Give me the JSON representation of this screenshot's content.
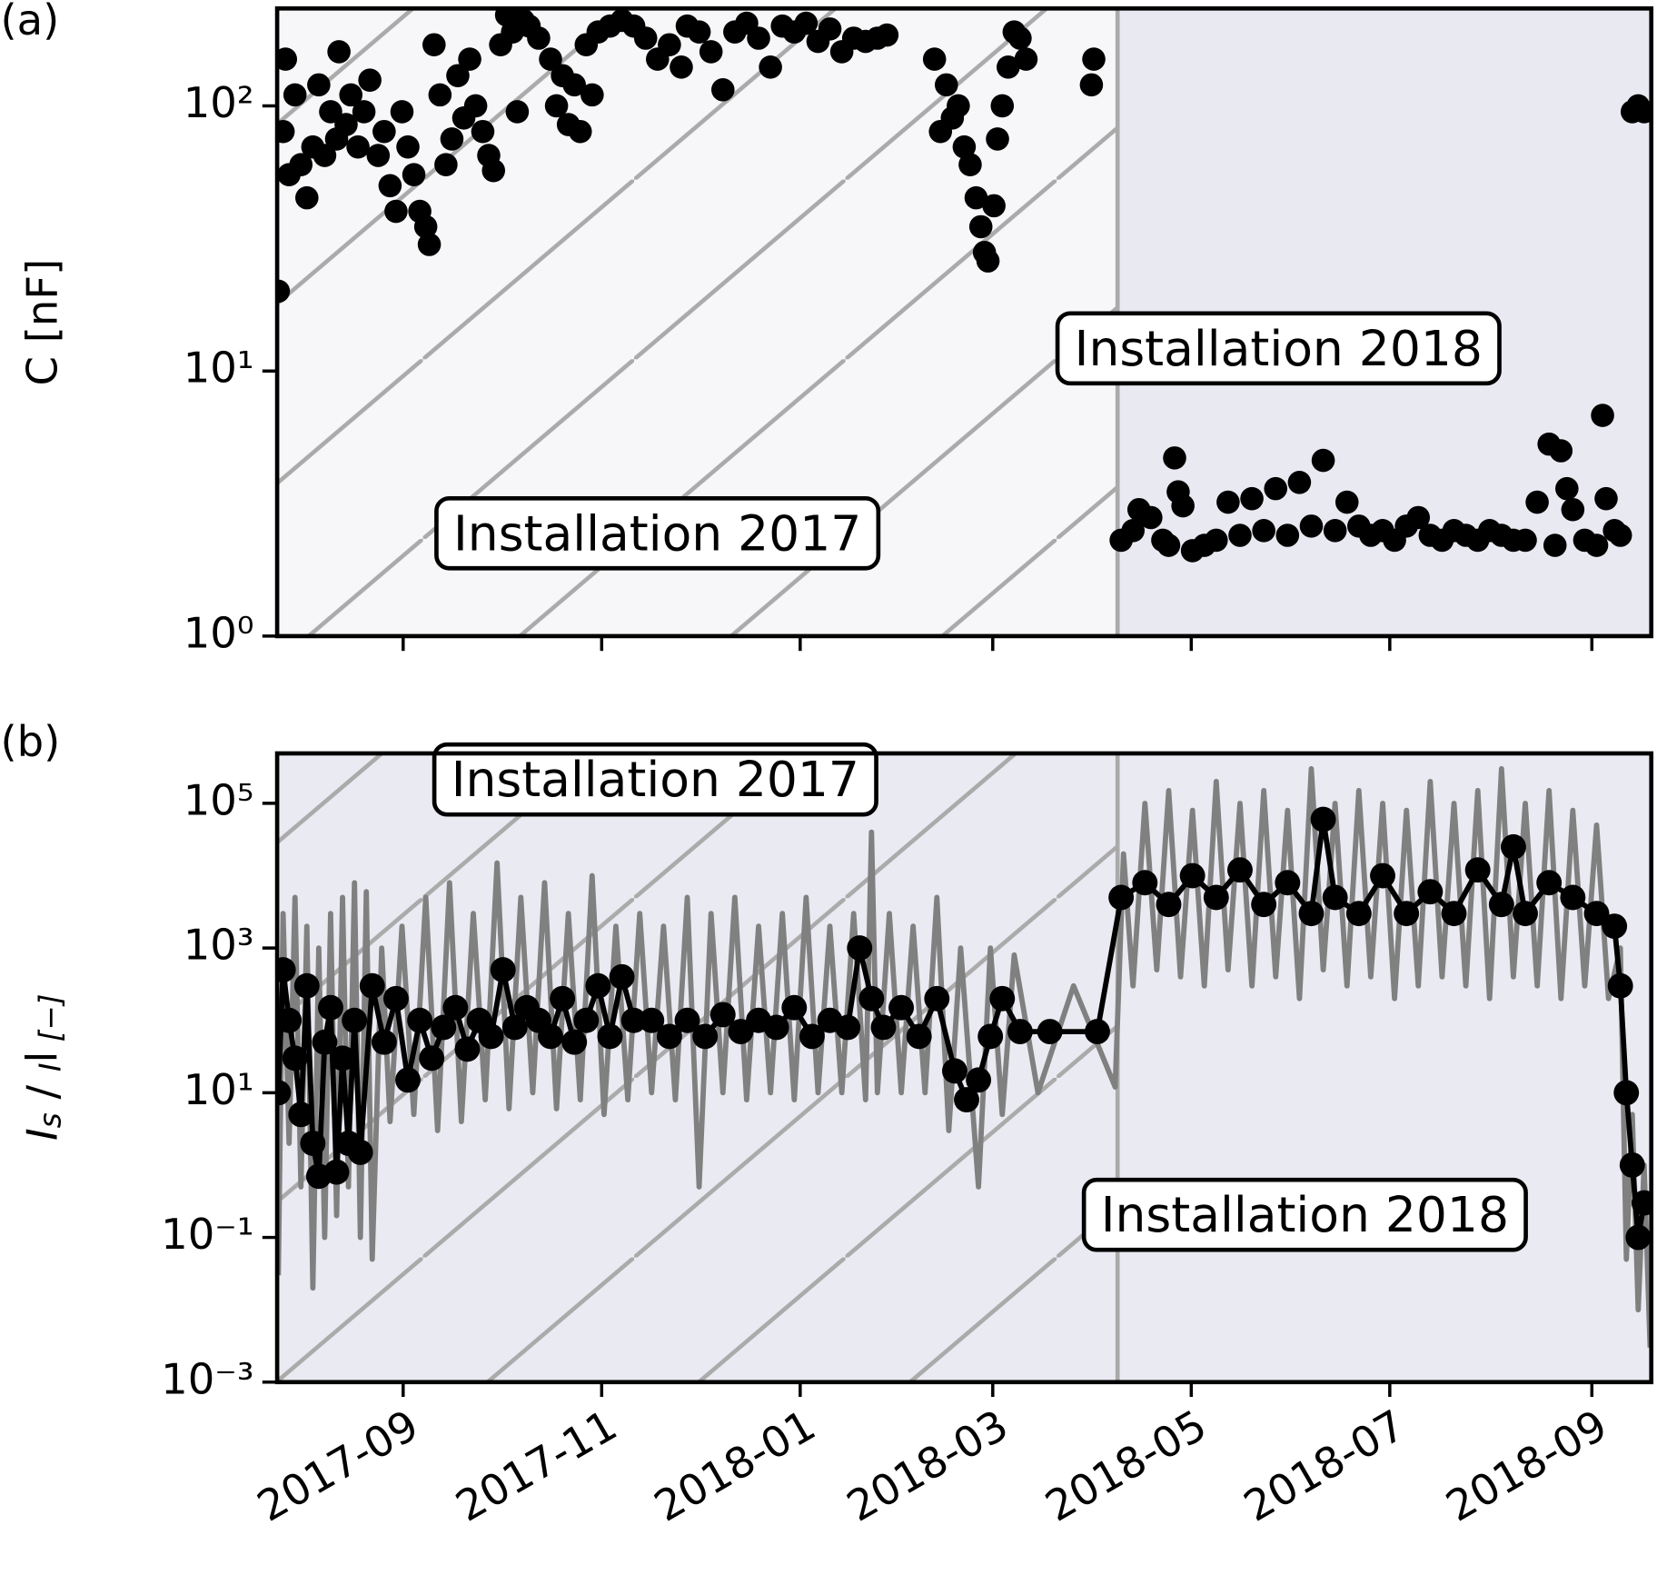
{
  "chart_data": [
    {
      "type": "scatter",
      "panel_label": "(a)",
      "ylabel": [
        "C [nF]"
      ],
      "log_y": true,
      "ylim": [
        1,
        233
      ],
      "yticks": [
        {
          "value": 1,
          "label": "10⁰"
        },
        {
          "value": 10,
          "label": "10¹"
        },
        {
          "value": 100,
          "label": "10²"
        }
      ],
      "xlim": [
        2017.56,
        2018.716
      ],
      "xticks": [
        2017.666,
        2017.833,
        2018.0,
        2018.162,
        2018.329,
        2018.496,
        2018.666
      ],
      "shade_split": 2018.267,
      "background_colors": [
        "#f7f7fa",
        "#e9e9f2"
      ],
      "hatch_color": "#aaaaaa",
      "annotations": [
        "Installation 2017",
        "Installation 2018"
      ],
      "color": "#000000",
      "x": [
        2017.561,
        2017.565,
        2017.567,
        2017.57,
        2017.575,
        2017.58,
        2017.585,
        2017.59,
        2017.595,
        2017.6,
        2017.605,
        2017.61,
        2017.612,
        2017.618,
        2017.622,
        2017.628,
        2017.633,
        2017.638,
        2017.645,
        2017.65,
        2017.655,
        2017.66,
        2017.665,
        2017.67,
        2017.675,
        2017.68,
        2017.685,
        2017.688,
        2017.692,
        2017.697,
        2017.702,
        2017.707,
        2017.712,
        2017.717,
        2017.722,
        2017.727,
        2017.733,
        2017.738,
        2017.742,
        2017.748,
        2017.753,
        2017.758,
        2017.762,
        2017.767,
        2017.772,
        2017.78,
        2017.79,
        2017.795,
        2017.8,
        2017.805,
        2017.81,
        2017.815,
        2017.82,
        2017.825,
        2017.83,
        2017.84,
        2017.85,
        2017.86,
        2017.87,
        2017.88,
        2017.89,
        2017.9,
        2017.905,
        2017.915,
        2017.925,
        2017.935,
        2017.945,
        2017.955,
        2017.965,
        2017.975,
        2017.985,
        2017.995,
        2018.005,
        2018.015,
        2018.025,
        2018.035,
        2018.045,
        2018.055,
        2018.065,
        2018.073,
        2018.113,
        2018.118,
        2018.123,
        2018.128,
        2018.133,
        2018.138,
        2018.143,
        2018.148,
        2018.152,
        2018.155,
        2018.158,
        2018.163,
        2018.166,
        2018.17,
        2018.175,
        2018.18,
        2018.185,
        2018.19,
        2018.245,
        2018.247,
        2018.27,
        2018.28,
        2018.285,
        2018.295,
        2018.305,
        2018.31,
        2018.315,
        2018.318,
        2018.322,
        2018.33,
        2018.34,
        2018.35,
        2018.36,
        2018.37,
        2018.38,
        2018.39,
        2018.4,
        2018.41,
        2018.42,
        2018.43,
        2018.44,
        2018.45,
        2018.46,
        2018.47,
        2018.48,
        2018.49,
        2018.5,
        2018.51,
        2018.52,
        2018.53,
        2018.54,
        2018.55,
        2018.56,
        2018.57,
        2018.58,
        2018.59,
        2018.6,
        2018.61,
        2018.62,
        2018.63,
        2018.635,
        2018.64,
        2018.645,
        2018.65,
        2018.66,
        2018.67,
        2018.675,
        2018.678,
        2018.685,
        2018.69,
        2018.7,
        2018.705,
        2018.71
      ],
      "values": [
        20,
        80,
        150,
        55,
        110,
        60,
        45,
        70,
        120,
        65,
        95,
        75,
        160,
        85,
        110,
        70,
        95,
        125,
        65,
        80,
        50,
        40,
        95,
        70,
        55,
        40,
        35,
        30,
        170,
        110,
        60,
        75,
        130,
        90,
        150,
        100,
        80,
        65,
        57,
        170,
        220,
        190,
        95,
        210,
        200,
        180,
        150,
        100,
        130,
        85,
        120,
        80,
        170,
        110,
        190,
        200,
        210,
        200,
        180,
        150,
        170,
        140,
        200,
        190,
        160,
        115,
        190,
        205,
        180,
        140,
        200,
        190,
        205,
        175,
        195,
        160,
        180,
        175,
        180,
        185,
        150,
        80,
        120,
        90,
        100,
        70,
        60,
        45,
        35,
        28,
        26,
        42,
        75,
        100,
        140,
        190,
        180,
        150,
        120,
        150,
        2.3,
        2.5,
        3.0,
        2.8,
        2.3,
        2.2,
        4.7,
        3.5,
        3.1,
        2.1,
        2.2,
        2.3,
        3.2,
        2.4,
        3.3,
        2.5,
        3.6,
        2.4,
        3.8,
        2.6,
        4.6,
        2.5,
        3.2,
        2.6,
        2.4,
        2.5,
        2.3,
        2.6,
        2.8,
        2.4,
        2.3,
        2.5,
        2.4,
        2.3,
        2.5,
        2.4,
        2.3,
        2.3,
        3.2,
        5.3,
        2.2,
        5.0,
        3.6,
        3.0,
        2.3,
        2.2,
        6.8,
        3.3,
        2.5,
        2.4,
        95,
        100,
        95
      ]
    },
    {
      "type": "line",
      "panel_label": "(b)",
      "ylabel": [
        "I",
        "s",
        " / ",
        "I",
        "l",
        " [−]"
      ],
      "log_y": true,
      "ylim": [
        0.001,
        490000
      ],
      "yticks": [
        {
          "value": 0.001,
          "label": "10⁻³"
        },
        {
          "value": 0.1,
          "label": "10⁻¹"
        },
        {
          "value": 10,
          "label": "10¹"
        },
        {
          "value": 1000,
          "label": "10³"
        },
        {
          "value": 100000,
          "label": "10⁵"
        }
      ],
      "xlim": [
        2017.56,
        2018.716
      ],
      "xticks": [
        {
          "value": 2017.666,
          "label": "2017-09"
        },
        {
          "value": 2017.833,
          "label": "2017-11"
        },
        {
          "value": 2018.0,
          "label": "2018-01"
        },
        {
          "value": 2018.162,
          "label": "2018-03"
        },
        {
          "value": 2018.329,
          "label": "2018-05"
        },
        {
          "value": 2018.496,
          "label": "2018-07"
        },
        {
          "value": 2018.666,
          "label": "2018-09"
        }
      ],
      "shade_split": 2018.267,
      "background_colors": [
        "#eaeaf2",
        "#eaeaf2"
      ],
      "hatch_color": "#aaaaaa",
      "annotations": [
        "Installation 2017",
        "Installation 2018"
      ],
      "series": [
        {
          "color": "#808080",
          "markers": false,
          "x": [
            2017.561,
            2017.565,
            2017.57,
            2017.575,
            2017.58,
            2017.585,
            2017.59,
            2017.595,
            2017.6,
            2017.605,
            2017.61,
            2017.615,
            2017.62,
            2017.625,
            2017.63,
            2017.635,
            2017.64,
            2017.648,
            2017.655,
            2017.665,
            2017.675,
            2017.685,
            2017.695,
            2017.705,
            2017.715,
            2017.725,
            2017.735,
            2017.745,
            2017.755,
            2017.765,
            2017.775,
            2017.785,
            2017.795,
            2017.805,
            2017.815,
            2017.825,
            2017.835,
            2017.845,
            2017.855,
            2017.865,
            2017.875,
            2017.885,
            2017.895,
            2017.905,
            2017.915,
            2017.925,
            2017.935,
            2017.945,
            2017.955,
            2017.965,
            2017.975,
            2017.985,
            2017.995,
            2018.005,
            2018.015,
            2018.025,
            2018.035,
            2018.045,
            2018.055,
            2018.06,
            2018.065,
            2018.075,
            2018.085,
            2018.095,
            2018.105,
            2018.115,
            2018.125,
            2018.135,
            2018.15,
            2018.16,
            2018.17,
            2018.18,
            2018.2,
            2018.23,
            2018.265,
            2018.272,
            2018.28,
            2018.29,
            2018.3,
            2018.31,
            2018.32,
            2018.33,
            2018.34,
            2018.35,
            2018.36,
            2018.37,
            2018.38,
            2018.39,
            2018.4,
            2018.41,
            2018.42,
            2018.43,
            2018.44,
            2018.45,
            2018.46,
            2018.47,
            2018.48,
            2018.49,
            2018.5,
            2018.51,
            2018.52,
            2018.53,
            2018.54,
            2018.55,
            2018.56,
            2018.57,
            2018.58,
            2018.59,
            2018.6,
            2018.61,
            2018.62,
            2018.63,
            2018.64,
            2018.65,
            2018.66,
            2018.67,
            2018.68,
            2018.69,
            2018.695,
            2018.7,
            2018.705,
            2018.71,
            2018.715
          ],
          "values": [
            0.03,
            3000,
            2,
            5000,
            0.5,
            2000,
            0.02,
            1000,
            0.1,
            3000,
            0.2,
            5000,
            0.5,
            8000,
            0.1,
            6000,
            0.05,
            1000,
            4,
            2000,
            5,
            5000,
            3,
            8000,
            4,
            3000,
            8,
            15000,
            6,
            5000,
            10,
            8000,
            6,
            3000,
            8,
            10000,
            5,
            2000,
            8,
            3000,
            10,
            2000,
            8,
            5000,
            0.5,
            3000,
            10,
            5000,
            8,
            2000,
            10,
            3000,
            8,
            5000,
            10,
            2000,
            10,
            3000,
            8,
            40000,
            10,
            3000,
            10,
            2000,
            10,
            5000,
            3,
            1000,
            0.5,
            1000,
            5,
            800,
            10,
            300,
            12,
            20000,
            300,
            100000,
            500,
            150000,
            400,
            80000,
            300,
            200000,
            500,
            100000,
            300,
            150000,
            400,
            80000,
            200,
            300000,
            500,
            100000,
            300,
            150000,
            400,
            100000,
            200,
            80000,
            300,
            200000,
            400,
            100000,
            300,
            150000,
            200,
            300000,
            400,
            100000,
            300,
            150000,
            200,
            80000,
            300,
            50000,
            200,
            1000,
            0.05,
            5,
            0.01,
            1,
            0.003
          ]
        },
        {
          "color": "#000000",
          "markers": true,
          "x": [
            2017.561,
            2017.565,
            2017.57,
            2017.575,
            2017.58,
            2017.585,
            2017.59,
            2017.595,
            2017.6,
            2017.605,
            2017.61,
            2017.615,
            2017.62,
            2017.625,
            2017.63,
            2017.64,
            2017.65,
            2017.66,
            2017.67,
            2017.68,
            2017.69,
            2017.7,
            2017.71,
            2017.72,
            2017.73,
            2017.74,
            2017.75,
            2017.76,
            2017.77,
            2017.78,
            2017.79,
            2017.8,
            2017.81,
            2017.82,
            2017.83,
            2017.84,
            2017.85,
            2017.86,
            2017.875,
            2017.89,
            2017.905,
            2017.92,
            2017.935,
            2017.95,
            2017.965,
            2017.98,
            2017.995,
            2018.01,
            2018.025,
            2018.04,
            2018.05,
            2018.06,
            2018.07,
            2018.085,
            2018.1,
            2018.115,
            2018.13,
            2018.14,
            2018.15,
            2018.16,
            2018.17,
            2018.185,
            2018.21,
            2018.25,
            2018.27,
            2018.29,
            2018.31,
            2018.33,
            2018.35,
            2018.37,
            2018.39,
            2018.41,
            2018.43,
            2018.44,
            2018.45,
            2018.47,
            2018.49,
            2018.51,
            2018.53,
            2018.55,
            2018.57,
            2018.59,
            2018.6,
            2018.61,
            2018.63,
            2018.65,
            2018.67,
            2018.685,
            2018.69,
            2018.695,
            2018.7,
            2018.705,
            2018.71
          ],
          "values": [
            10,
            500,
            100,
            30,
            5,
            300,
            2,
            0.7,
            50,
            150,
            0.8,
            30,
            2,
            100,
            1.5,
            300,
            50,
            200,
            15,
            100,
            30,
            80,
            150,
            40,
            100,
            60,
            500,
            80,
            150,
            100,
            60,
            200,
            50,
            100,
            300,
            60,
            400,
            100,
            100,
            60,
            100,
            60,
            120,
            70,
            100,
            80,
            150,
            60,
            100,
            80,
            1000,
            200,
            80,
            150,
            60,
            200,
            20,
            8,
            15,
            60,
            200,
            70,
            70,
            70,
            5000,
            8000,
            4000,
            10000,
            5000,
            12000,
            4000,
            8000,
            3000,
            60000,
            5000,
            3000,
            10000,
            3000,
            6000,
            3000,
            12000,
            4000,
            25000,
            3000,
            8000,
            5000,
            3000,
            2000,
            300,
            10,
            1,
            0.1,
            0.3
          ]
        }
      ]
    }
  ]
}
